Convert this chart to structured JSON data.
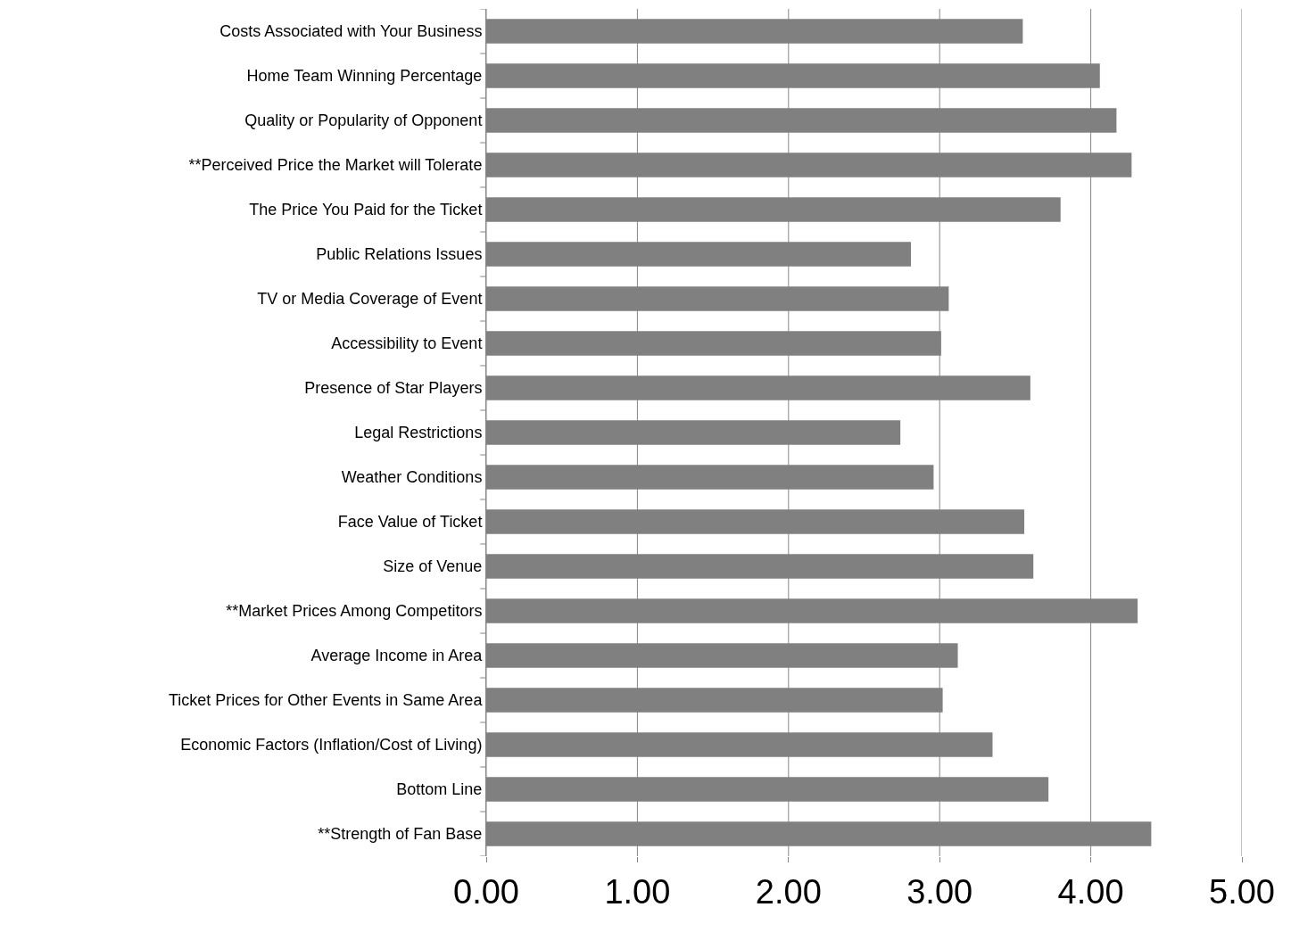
{
  "chart_data": {
    "type": "bar",
    "orientation": "horizontal",
    "categories": [
      "Costs Associated with Your Business",
      "Home Team Winning Percentage",
      "Quality or Popularity of Opponent",
      "**Perceived Price the Market will Tolerate",
      "The Price You Paid for the Ticket",
      "Public Relations Issues",
      "TV or Media Coverage of Event",
      "Accessibility to Event",
      "Presence of Star Players",
      "Legal Restrictions",
      "Weather Conditions",
      "Face Value of Ticket",
      "Size of Venue",
      "**Market Prices Among Competitors",
      "Average Income in Area",
      "Ticket Prices for Other Events in Same Area",
      "Economic Factors (Inflation/Cost of Living)",
      "Bottom Line",
      "**Strength of Fan Base"
    ],
    "values": [
      3.55,
      4.06,
      4.17,
      4.27,
      3.8,
      2.81,
      3.06,
      3.01,
      3.6,
      2.74,
      2.96,
      3.56,
      3.62,
      4.31,
      3.12,
      3.02,
      3.35,
      3.72,
      4.4
    ],
    "color": "#808080",
    "xlim": [
      0,
      5
    ],
    "xticks": [
      {
        "value": 0,
        "label": "0.00"
      },
      {
        "value": 1,
        "label": "1.00"
      },
      {
        "value": 2,
        "label": "2.00"
      },
      {
        "value": 3,
        "label": "3.00"
      },
      {
        "value": 4,
        "label": "4.00"
      },
      {
        "value": 5,
        "label": "5.00"
      }
    ],
    "grid": "x"
  }
}
